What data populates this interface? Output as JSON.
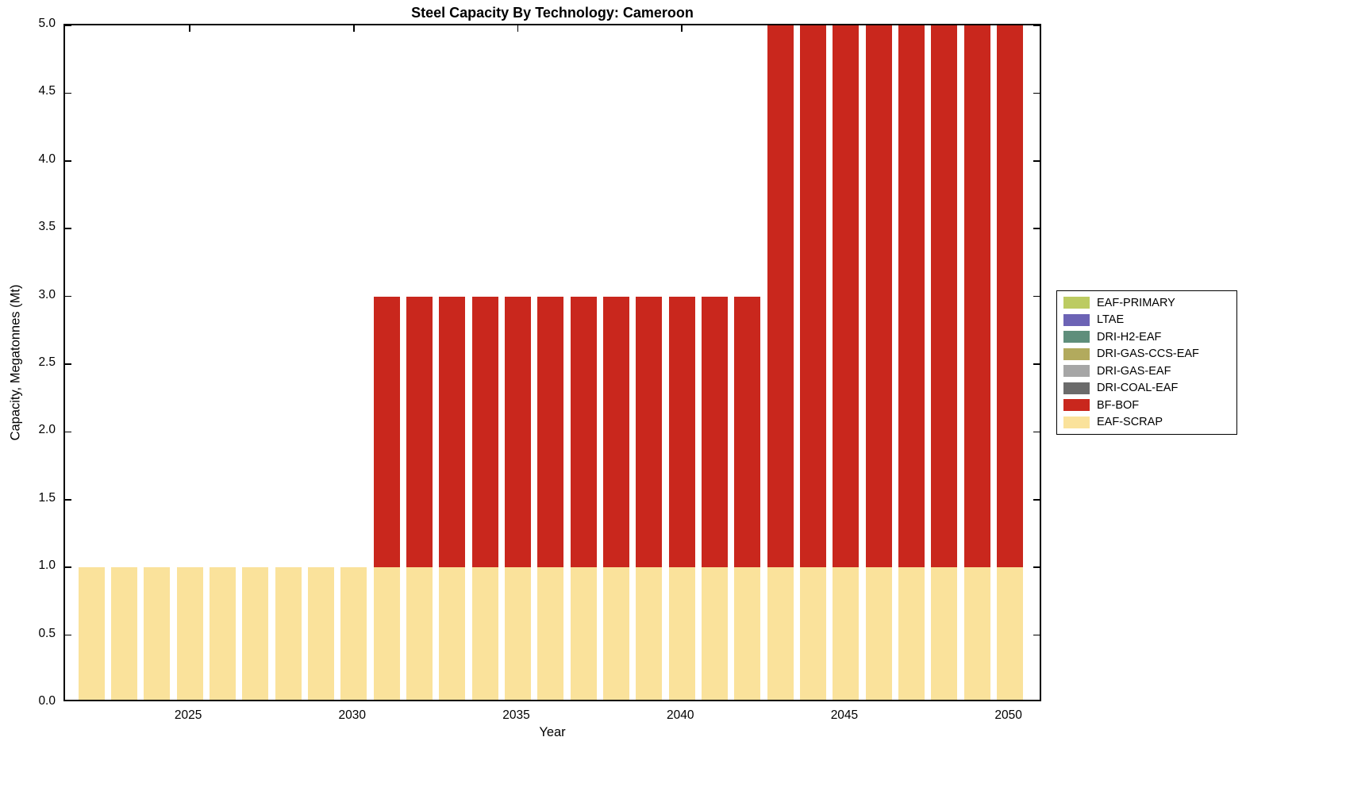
{
  "chart_data": {
    "type": "bar",
    "stacked": true,
    "title": "Steel Capacity By Technology: Cameroon",
    "xlabel": "Year",
    "ylabel": "Capacity, Megatonnes (Mt)",
    "xlim": [
      2021.2,
      2051.0
    ],
    "ylim": [
      0,
      5
    ],
    "grid": false,
    "legend_position": "right-outside",
    "background_color": "#ffffff",
    "axis_color": "#000000",
    "xticks": [
      2025,
      2030,
      2035,
      2040,
      2045,
      2050
    ],
    "yticks": [
      0.0,
      0.5,
      1.0,
      1.5,
      2.0,
      2.5,
      3.0,
      3.5,
      4.0,
      4.5,
      5.0
    ],
    "categories": [
      2022,
      2023,
      2024,
      2025,
      2026,
      2027,
      2028,
      2029,
      2030,
      2031,
      2032,
      2033,
      2034,
      2035,
      2036,
      2037,
      2038,
      2039,
      2040,
      2041,
      2042,
      2043,
      2044,
      2045,
      2046,
      2047,
      2048,
      2049,
      2050
    ],
    "series": [
      {
        "name": "EAF-SCRAP",
        "color": "#FAE29B",
        "values": [
          1,
          1,
          1,
          1,
          1,
          1,
          1,
          1,
          1,
          1,
          1,
          1,
          1,
          1,
          1,
          1,
          1,
          1,
          1,
          1,
          1,
          1,
          1,
          1,
          1,
          1,
          1,
          1,
          1
        ]
      },
      {
        "name": "BF-BOF",
        "color": "#C9271D",
        "values": [
          0,
          0,
          0,
          0,
          0,
          0,
          0,
          0,
          0,
          2,
          2,
          2,
          2,
          2,
          2,
          2,
          2,
          2,
          2,
          2,
          2,
          4,
          4,
          4,
          4,
          4,
          4,
          4,
          4
        ]
      }
    ],
    "legend": [
      {
        "label": "EAF-PRIMARY",
        "color": "#BCCB62"
      },
      {
        "label": "LTAE",
        "color": "#6C63B5"
      },
      {
        "label": "DRI-H2-EAF",
        "color": "#5F8E7B"
      },
      {
        "label": "DRI-GAS-CCS-EAF",
        "color": "#B2AA5D"
      },
      {
        "label": "DRI-GAS-EAF",
        "color": "#A6A6A6"
      },
      {
        "label": "DRI-COAL-EAF",
        "color": "#6B6B6B"
      },
      {
        "label": "BF-BOF",
        "color": "#C9271D"
      },
      {
        "label": "EAF-SCRAP",
        "color": "#FAE29B"
      }
    ]
  }
}
